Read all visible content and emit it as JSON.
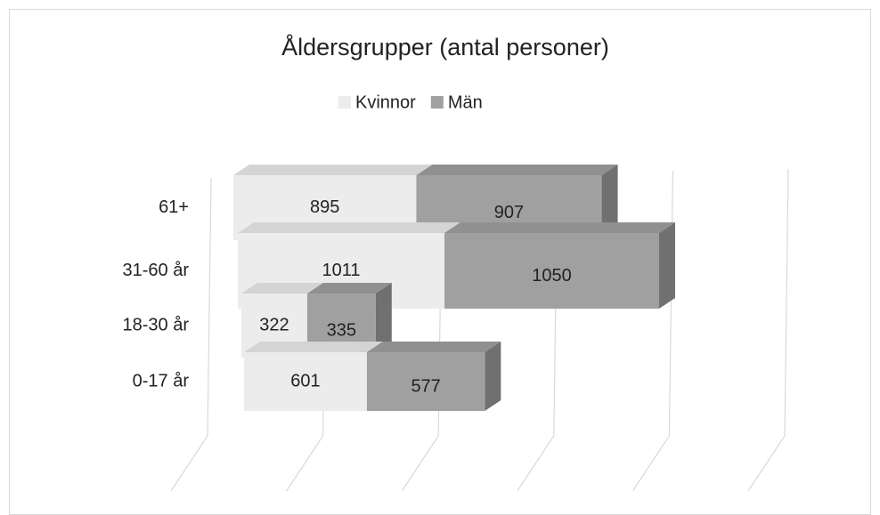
{
  "chart_data": {
    "type": "bar3d_stacked_horizontal",
    "title": "Åldersgrupper (antal personer)",
    "categories": [
      "61+",
      "31-60 år",
      "18-30 år",
      "0-17 år"
    ],
    "series": [
      {
        "name": "Kvinnor",
        "color": "#ececec",
        "values": [
          895,
          1011,
          322,
          601
        ]
      },
      {
        "name": "Män",
        "color": "#a0a0a0",
        "values": [
          907,
          1050,
          335,
          577
        ]
      }
    ],
    "xlim": [
      0,
      2500
    ],
    "xticks": [
      0,
      500,
      1000,
      1500,
      2000,
      2500
    ],
    "grid": true,
    "legend": "top"
  }
}
